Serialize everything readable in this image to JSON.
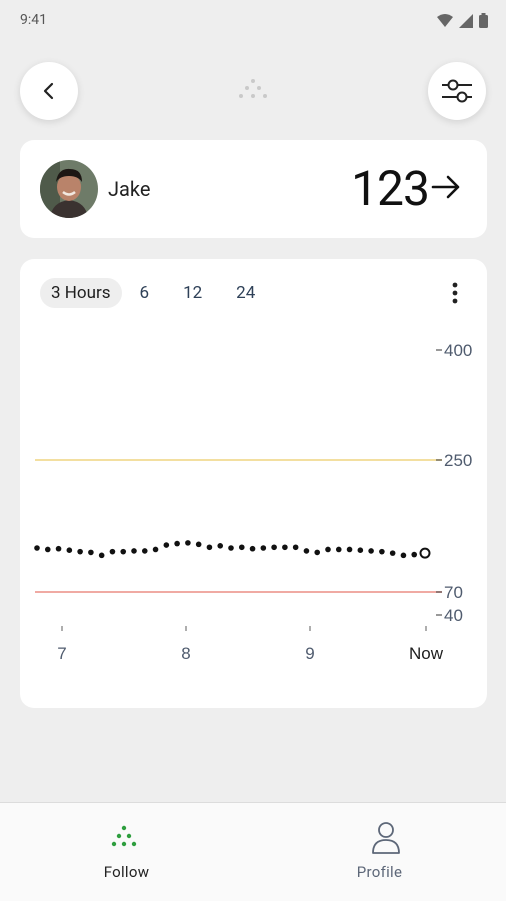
{
  "status_bar": {
    "time": "9:41"
  },
  "header": {
    "back_icon": "chevron-left-icon",
    "logo_icon": "dots-triangle-logo",
    "filter_icon": "sliders-icon"
  },
  "user": {
    "name": "Jake",
    "reading": "123",
    "trend_icon": "arrow-right-icon"
  },
  "tabs": [
    {
      "label": "3 Hours",
      "active": true
    },
    {
      "label": "6",
      "active": false
    },
    {
      "label": "12",
      "active": false
    },
    {
      "label": "24",
      "active": false
    }
  ],
  "chart_data": {
    "type": "scatter",
    "x_ticks": [
      "7",
      "8",
      "9",
      "Now"
    ],
    "y_ticks": [
      "400",
      "250",
      "70",
      "40"
    ],
    "y_range": [
      40,
      400
    ],
    "thresholds": [
      {
        "name": "high",
        "value": 250,
        "color": "#f3dfa0"
      },
      {
        "name": "low",
        "value": 70,
        "color": "#f0aaa3"
      }
    ],
    "series": [
      {
        "values": [
          130,
          128,
          129,
          127,
          125,
          124,
          120,
          125,
          125,
          126,
          126,
          128,
          134,
          136,
          137,
          135,
          131,
          133,
          130,
          131,
          129,
          130,
          131,
          131,
          131,
          126,
          124,
          128,
          128,
          128,
          127,
          126,
          125,
          123,
          120,
          121,
          123
        ]
      }
    ],
    "current_value": 123
  },
  "nav": {
    "follow": {
      "label": "Follow",
      "icon": "dots-triangle-icon"
    },
    "profile": {
      "label": "Profile",
      "icon": "person-icon"
    }
  },
  "colors": {
    "accent": "#2e9e3e",
    "high": "#f3dfa0",
    "low": "#f0aaa3",
    "tick": "#4f5b6e"
  }
}
